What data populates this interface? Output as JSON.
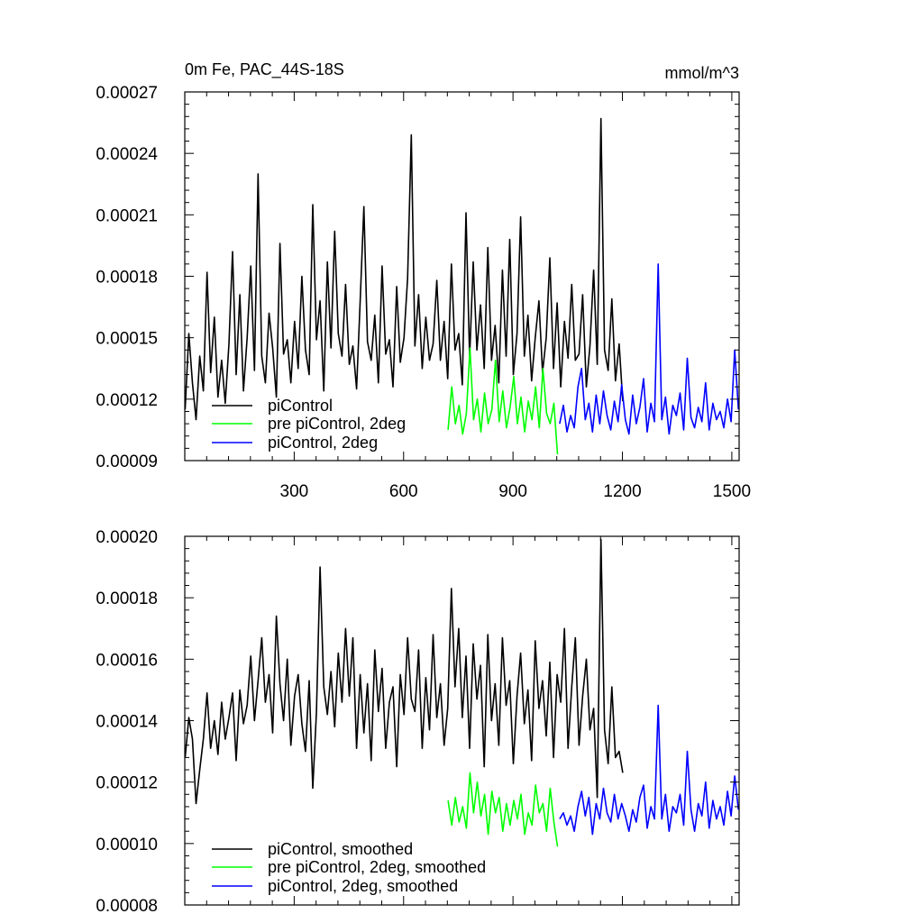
{
  "chart_data": [
    {
      "type": "line",
      "title_left": "0m Fe, PAC_44S-18S",
      "title_right": "mmol/m^3",
      "xlabel": "",
      "ylabel": "",
      "xlim": [
        0,
        1520
      ],
      "ylim": [
        9e-05,
        0.00027
      ],
      "xticks": [
        300,
        600,
        900,
        1200,
        1500
      ],
      "xtick_labels": [
        "300",
        "600",
        "900",
        "1200",
        "1500"
      ],
      "yticks": [
        9e-05,
        0.00012,
        0.00015,
        0.00018,
        0.00021,
        0.00024,
        0.00027
      ],
      "ytick_labels": [
        "0.00009",
        "0.00012",
        "0.00015",
        "0.00018",
        "0.00021",
        "0.00024",
        "0.00027"
      ],
      "legend_position": "bottom-left",
      "series": [
        {
          "name": "piControl",
          "color": "#000000",
          "x": [
            1,
            11,
            21,
            31,
            41,
            51,
            61,
            71,
            81,
            91,
            101,
            111,
            121,
            131,
            141,
            151,
            161,
            171,
            181,
            191,
            201,
            211,
            221,
            231,
            241,
            251,
            261,
            271,
            281,
            291,
            301,
            311,
            321,
            331,
            341,
            351,
            361,
            371,
            381,
            391,
            401,
            411,
            421,
            431,
            441,
            451,
            461,
            471,
            481,
            491,
            501,
            511,
            521,
            531,
            541,
            551,
            561,
            571,
            581,
            591,
            601,
            611,
            621,
            631,
            641,
            651,
            661,
            671,
            681,
            691,
            701,
            711,
            721,
            731,
            741,
            751,
            761,
            771,
            781,
            791,
            801,
            811,
            821,
            831,
            841,
            851,
            861,
            871,
            881,
            891,
            901,
            911,
            921,
            931,
            941,
            951,
            961,
            971,
            981,
            991,
            1001,
            1011,
            1021,
            1031,
            1041,
            1051,
            1061,
            1071,
            1081,
            1091,
            1101,
            1111,
            1121,
            1131,
            1141,
            1151,
            1161,
            1171,
            1181,
            1191,
            1201
          ],
          "values": [
            0.000115,
            0.000152,
            0.000128,
            0.00011,
            0.000141,
            0.000124,
            0.000182,
            0.000133,
            0.00016,
            0.000121,
            0.000139,
            0.000118,
            0.000147,
            0.000192,
            0.000132,
            0.000171,
            0.000124,
            0.00015,
            0.000185,
            0.000134,
            0.00023,
            0.000141,
            0.000128,
            0.000162,
            0.000145,
            0.000121,
            0.000196,
            0.000142,
            0.000149,
            0.000128,
            0.000158,
            0.000135,
            0.00018,
            0.000144,
            0.000132,
            0.000215,
            0.000149,
            0.000168,
            0.000124,
            0.000187,
            0.000145,
            0.000202,
            0.000152,
            0.000141,
            0.000176,
            0.000137,
            0.000146,
            0.000125,
            0.000168,
            0.000214,
            0.000148,
            0.000139,
            0.000161,
            0.000128,
            0.000185,
            0.000142,
            0.000149,
            0.000126,
            0.000175,
            0.000138,
            0.00015,
            0.000179,
            0.000249,
            0.000146,
            0.000171,
            0.000135,
            0.00016,
            0.000139,
            0.000147,
            0.000178,
            0.000139,
            0.000158,
            0.00013,
            0.000186,
            0.000144,
            0.000152,
            0.000127,
            0.000211,
            0.00014,
            0.000187,
            0.000144,
            0.000166,
            0.000135,
            0.000194,
            0.000139,
            0.000156,
            0.000128,
            0.000183,
            0.000141,
            0.000198,
            0.000132,
            0.000152,
            0.000209,
            0.000141,
            0.000161,
            0.000129,
            0.00015,
            0.000168,
            0.000133,
            0.00015,
            0.000189,
            0.000135,
            0.000167,
            0.000126,
            0.000158,
            0.00014,
            0.000176,
            0.000139,
            0.000142,
            0.000171,
            0.000126,
            0.000146,
            0.000183,
            0.000137,
            0.000257,
            0.000144,
            0.000134,
            0.000169,
            0.000129,
            0.000147,
            0.000119
          ]
        },
        {
          "name": "pre piControl, 2deg",
          "color": "#00ff00",
          "x": [
            722,
            732,
            742,
            752,
            762,
            772,
            782,
            792,
            802,
            812,
            822,
            832,
            842,
            852,
            862,
            872,
            882,
            892,
            902,
            912,
            922,
            932,
            942,
            952,
            962,
            972,
            982,
            992,
            1002,
            1012,
            1022
          ],
          "values": [
            0.000105,
            0.000126,
            0.000108,
            0.000117,
            0.000103,
            0.000113,
            0.000145,
            0.00011,
            0.00012,
            0.000104,
            0.000123,
            0.000108,
            0.000115,
            0.000139,
            0.000109,
            0.000124,
            0.000106,
            0.000116,
            0.000131,
            0.000108,
            0.000121,
            0.000104,
            0.000119,
            0.00011,
            0.000126,
            0.000106,
            0.000135,
            0.000113,
            0.000108,
            0.000118,
            9.3e-05
          ]
        },
        {
          "name": "piControl, 2deg",
          "color": "#0000ff",
          "x": [
            1028,
            1038,
            1048,
            1058,
            1068,
            1078,
            1088,
            1098,
            1108,
            1118,
            1128,
            1138,
            1148,
            1158,
            1168,
            1178,
            1188,
            1198,
            1208,
            1218,
            1228,
            1238,
            1248,
            1258,
            1268,
            1278,
            1288,
            1298,
            1308,
            1318,
            1328,
            1338,
            1348,
            1358,
            1368,
            1378,
            1388,
            1398,
            1408,
            1418,
            1428,
            1438,
            1448,
            1458,
            1468,
            1478,
            1488,
            1498,
            1508,
            1518
          ],
          "values": [
            0.000108,
            0.000117,
            0.000104,
            0.000112,
            0.000106,
            0.000126,
            0.000135,
            0.00011,
            0.000118,
            0.000104,
            0.000122,
            0.000108,
            0.000124,
            0.000112,
            0.000105,
            0.000119,
            0.000109,
            0.000127,
            0.00011,
            0.000103,
            0.000122,
            0.000108,
            0.000116,
            0.00013,
            0.000104,
            0.000118,
            0.000109,
            0.000186,
            0.00011,
            0.000121,
            0.000103,
            0.000117,
            0.000112,
            0.000123,
            0.000105,
            0.00014,
            0.000111,
            0.000106,
            0.000116,
            0.000109,
            0.000128,
            0.000105,
            0.000118,
            0.00011,
            0.000114,
            0.000106,
            0.00012,
            0.000109,
            0.000144,
            0.000115
          ]
        }
      ]
    },
    {
      "type": "line",
      "title_left": "",
      "title_right": "",
      "xlabel": "",
      "ylabel": "",
      "xlim": [
        0,
        1520
      ],
      "ylim": [
        8e-05,
        0.0002
      ],
      "xticks": [
        300,
        600,
        900,
        1200,
        1500
      ],
      "xtick_labels": [],
      "yticks": [
        8e-05,
        0.0001,
        0.00012,
        0.00014,
        0.00016,
        0.00018,
        0.0002
      ],
      "ytick_labels": [
        "0.00008",
        "0.00010",
        "0.00012",
        "0.00014",
        "0.00016",
        "0.00018",
        "0.00020"
      ],
      "legend_position": "bottom-left",
      "series": [
        {
          "name": "piControl, smoothed",
          "color": "#000000",
          "x": [
            1,
            11,
            21,
            31,
            41,
            51,
            61,
            71,
            81,
            91,
            101,
            111,
            121,
            131,
            141,
            151,
            161,
            171,
            181,
            191,
            201,
            211,
            221,
            231,
            241,
            251,
            261,
            271,
            281,
            291,
            301,
            311,
            321,
            331,
            341,
            351,
            361,
            371,
            381,
            391,
            401,
            411,
            421,
            431,
            441,
            451,
            461,
            471,
            481,
            491,
            501,
            511,
            521,
            531,
            541,
            551,
            561,
            571,
            581,
            591,
            601,
            611,
            621,
            631,
            641,
            651,
            661,
            671,
            681,
            691,
            701,
            711,
            721,
            731,
            741,
            751,
            761,
            771,
            781,
            791,
            801,
            811,
            821,
            831,
            841,
            851,
            861,
            871,
            881,
            891,
            901,
            911,
            921,
            931,
            941,
            951,
            961,
            971,
            981,
            991,
            1001,
            1011,
            1021,
            1031,
            1041,
            1051,
            1061,
            1071,
            1081,
            1091,
            1101,
            1111,
            1121,
            1131,
            1141,
            1151,
            1161,
            1171,
            1181,
            1191,
            1201
          ],
          "values": [
            0.000128,
            0.000141,
            0.000134,
            0.000113,
            0.000124,
            0.000134,
            0.000149,
            0.000131,
            0.00014,
            0.000129,
            0.000146,
            0.000134,
            0.000141,
            0.000149,
            0.000127,
            0.00015,
            0.000139,
            0.000145,
            0.000161,
            0.00014,
            0.000153,
            0.000167,
            0.000146,
            0.000155,
            0.000136,
            0.000174,
            0.000152,
            0.00014,
            0.00016,
            0.000132,
            0.000148,
            0.000155,
            0.000139,
            0.00013,
            0.000153,
            0.000118,
            0.000143,
            0.00019,
            0.000151,
            0.000142,
            0.000156,
            0.000138,
            0.000162,
            0.000146,
            0.00017,
            0.000148,
            0.000167,
            0.000131,
            0.000155,
            0.000136,
            0.000152,
            0.000127,
            0.000163,
            0.000143,
            0.000157,
            0.000131,
            0.000146,
            0.000151,
            0.000125,
            0.000155,
            0.000142,
            0.000167,
            0.000147,
            0.000143,
            0.000163,
            0.000131,
            0.000154,
            0.000137,
            0.000168,
            0.000141,
            0.000152,
            0.000132,
            0.000144,
            0.000183,
            0.000151,
            0.00017,
            0.000141,
            0.000161,
            0.000131,
            0.000165,
            0.000147,
            0.000158,
            0.000125,
            0.000168,
            0.00014,
            0.000152,
            0.000132,
            0.000167,
            0.000145,
            0.000153,
            0.000126,
            0.000148,
            0.000162,
            0.000139,
            0.00015,
            0.000127,
            0.000166,
            0.000144,
            0.000153,
            0.000135,
            0.000159,
            0.000128,
            0.000155,
            0.000146,
            0.00017,
            0.000131,
            0.000151,
            0.000167,
            0.000132,
            0.000148,
            0.00016,
            0.000137,
            0.000144,
            0.000115,
            0.000199,
            0.000137,
            0.000126,
            0.000151,
            0.000128,
            0.00013,
            0.000123
          ]
        },
        {
          "name": "pre piControl, 2deg, smoothed",
          "color": "#00ff00",
          "x": [
            722,
            732,
            742,
            752,
            762,
            772,
            782,
            792,
            802,
            812,
            822,
            832,
            842,
            852,
            862,
            872,
            882,
            892,
            902,
            912,
            922,
            932,
            942,
            952,
            962,
            972,
            982,
            992,
            1002,
            1012,
            1022
          ],
          "values": [
            0.000114,
            0.000106,
            0.000115,
            0.000107,
            0.000112,
            0.000105,
            0.000123,
            0.00011,
            0.00012,
            0.000109,
            0.000116,
            0.000103,
            0.000117,
            0.00011,
            0.000115,
            0.000104,
            0.000113,
            0.000106,
            0.000114,
            0.000108,
            0.000116,
            0.000103,
            0.00011,
            0.000106,
            0.000119,
            0.00011,
            0.000113,
            0.000104,
            0.000118,
            0.000107,
            9.9e-05
          ]
        },
        {
          "name": "piControl, 2deg, smoothed",
          "color": "#0000ff",
          "x": [
            1028,
            1038,
            1048,
            1058,
            1068,
            1078,
            1088,
            1098,
            1108,
            1118,
            1128,
            1138,
            1148,
            1158,
            1168,
            1178,
            1188,
            1198,
            1208,
            1218,
            1228,
            1238,
            1248,
            1258,
            1268,
            1278,
            1288,
            1298,
            1308,
            1318,
            1328,
            1338,
            1348,
            1358,
            1368,
            1378,
            1388,
            1398,
            1408,
            1418,
            1428,
            1438,
            1448,
            1458,
            1468,
            1478,
            1488,
            1498,
            1508,
            1518
          ],
          "values": [
            0.000108,
            0.00011,
            0.000106,
            0.000109,
            0.000104,
            0.000112,
            0.000117,
            0.000109,
            0.000115,
            0.000103,
            0.000113,
            0.000108,
            0.000118,
            0.00011,
            0.000107,
            0.000116,
            0.000108,
            0.000113,
            0.000109,
            0.000104,
            0.000111,
            0.000107,
            0.000115,
            0.000119,
            0.000105,
            0.000112,
            0.000108,
            0.000145,
            0.000108,
            0.000116,
            0.000104,
            0.000112,
            0.00011,
            0.000116,
            0.000106,
            0.00013,
            0.000111,
            0.000104,
            0.000113,
            0.000109,
            0.00012,
            0.000105,
            0.000114,
            0.000108,
            0.000112,
            0.000106,
            0.000117,
            0.000109,
            0.000122,
            0.000111
          ]
        }
      ]
    }
  ]
}
